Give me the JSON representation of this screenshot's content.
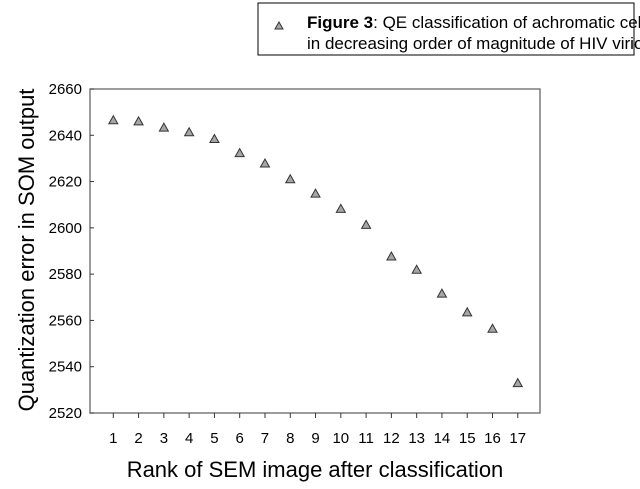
{
  "chart_data": {
    "type": "scatter",
    "title": "",
    "xlabel": "Rank of SEM image after classification",
    "ylabel": "Quantization error in SOM output",
    "x": [
      1,
      2,
      3,
      4,
      5,
      6,
      7,
      8,
      9,
      10,
      11,
      12,
      13,
      14,
      15,
      16,
      17
    ],
    "series": [
      {
        "name": "QE classification of achromatic cell images in decreasing order of magnitude of HIV virion infection",
        "values": [
          2646.5,
          2646,
          2643.3,
          2641.3,
          2638.4,
          2632.3,
          2627.8,
          2621,
          2614.8,
          2608.2,
          2601.3,
          2587.6,
          2581.9,
          2571.6,
          2563.5,
          2556.4,
          2532.9
        ],
        "marker": "triangle",
        "color": "#a6a6a6"
      }
    ],
    "xlim": [
      0.1,
      17.9
    ],
    "ylim": [
      2520,
      2660
    ],
    "x_ticks": [
      "1",
      "2",
      "3",
      "4",
      "5",
      "6",
      "7",
      "8",
      "9",
      "10",
      "11",
      "12",
      "13",
      "14",
      "15",
      "16",
      "17"
    ],
    "y_ticks": [
      "2520",
      "2540",
      "2560",
      "2580",
      "2600",
      "2620",
      "2640",
      "2660"
    ],
    "grid": false,
    "legend": {
      "placement": "top-right",
      "bold_label": "Figure 3",
      "label_line1": ": QE classification of achromatic cell images",
      "label_line2": "in decreasing order of magnitude of HIV virion infection"
    }
  }
}
